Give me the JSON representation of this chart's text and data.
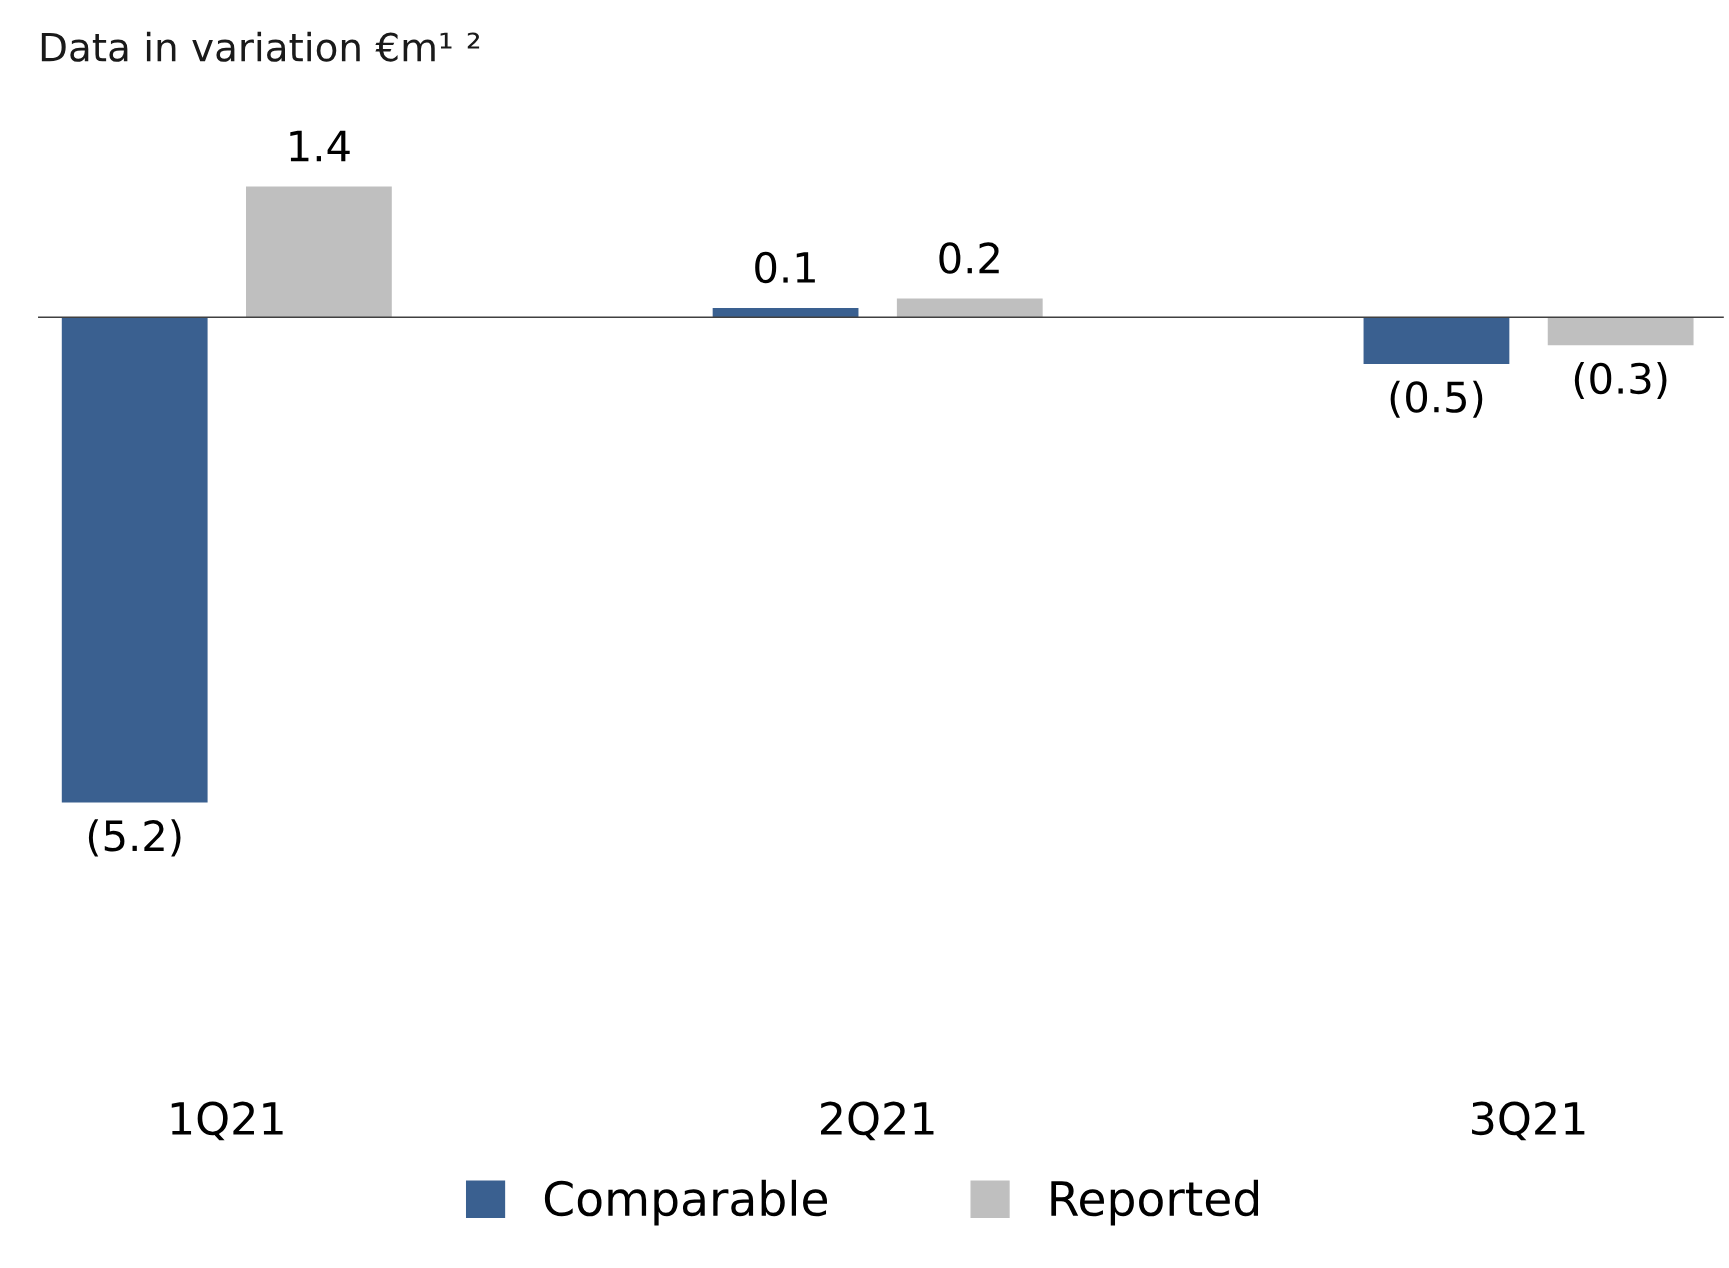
{
  "chart_data": {
    "type": "bar",
    "title": "Data in variation €m¹ ²",
    "categories": [
      "1Q21",
      "2Q21",
      "3Q21"
    ],
    "series": [
      {
        "name": "Comparable",
        "color": "#3a6090",
        "values": [
          -5.2,
          0.1,
          -0.5
        ],
        "value_labels": [
          "(5.2)",
          "0.1",
          "(0.5)"
        ]
      },
      {
        "name": "Reported",
        "color": "#bfbfbf",
        "values": [
          1.4,
          0.2,
          -0.3
        ],
        "value_labels": [
          "1.4",
          "0.2",
          "(0.3)"
        ]
      }
    ],
    "tick_labels": "x",
    "legend": "bottom",
    "grid": false
  }
}
